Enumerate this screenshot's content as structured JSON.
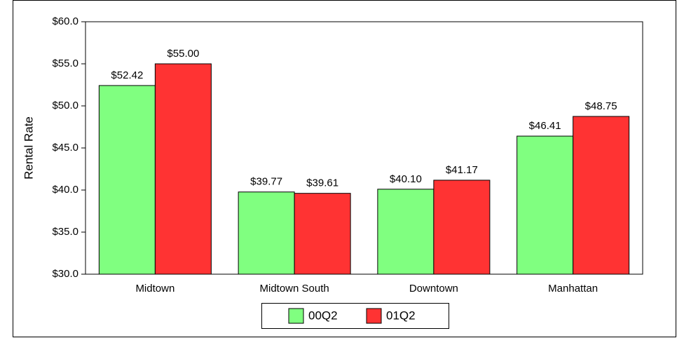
{
  "chart_data": {
    "type": "bar",
    "categories": [
      "Midtown",
      "Midtown South",
      "Downtown",
      "Manhattan"
    ],
    "series": [
      {
        "name": "00Q2",
        "color": "#80ff80",
        "values": [
          52.42,
          39.77,
          40.1,
          46.41
        ],
        "value_labels": [
          "$52.42",
          "$39.77",
          "$40.10",
          "$46.41"
        ]
      },
      {
        "name": "01Q2",
        "color": "#ff3333",
        "values": [
          55.0,
          39.61,
          41.17,
          48.75
        ],
        "value_labels": [
          "$55.00",
          "$39.61",
          "$41.17",
          "$48.75"
        ]
      }
    ],
    "y_label": "Rental Rate",
    "ylim": [
      30,
      60
    ],
    "yticks": [
      {
        "value": 30,
        "label": "$30.0"
      },
      {
        "value": 35,
        "label": "$35.0"
      },
      {
        "value": 40,
        "label": "$40.0"
      },
      {
        "value": 45,
        "label": "$45.0"
      },
      {
        "value": 50,
        "label": "$50.0"
      },
      {
        "value": 55,
        "label": "$55.0"
      },
      {
        "value": 60,
        "label": "$60.0"
      }
    ],
    "grid": false
  }
}
